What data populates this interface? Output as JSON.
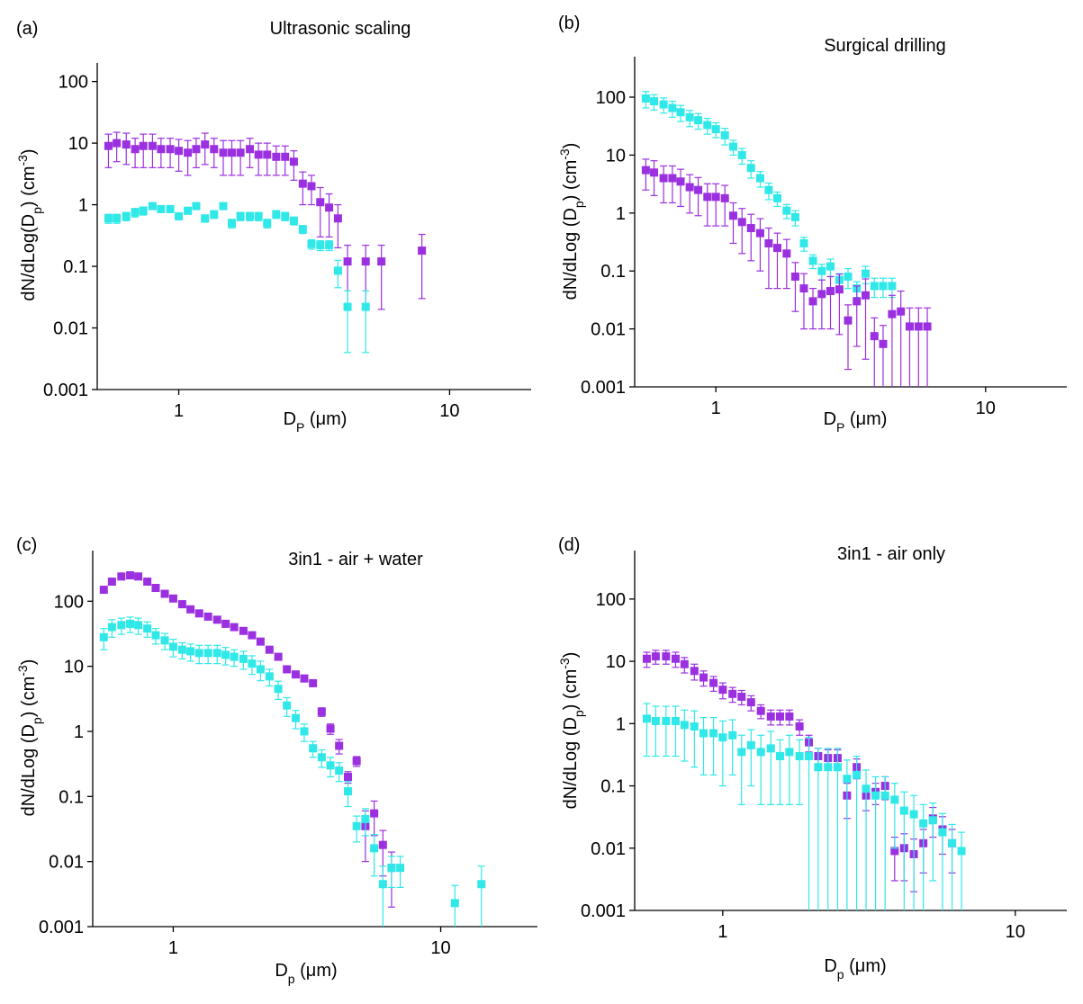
{
  "chart_data": [
    {
      "type": "scatter",
      "panel": "(a)",
      "title": "Ultrasonic scaling",
      "xlabel": [
        "D",
        "P",
        " (μm)"
      ],
      "ylabel": [
        "dN/dLog(D",
        "p",
        ")  (cm",
        "-3",
        ")"
      ],
      "xscale": "log",
      "yscale": "log",
      "xlim": [
        0.5,
        20
      ],
      "ylim": [
        0.001,
        200
      ],
      "xticks": [
        1,
        10
      ],
      "yticks": [
        0.001,
        0.01,
        0.1,
        1,
        10,
        100
      ],
      "series": [
        {
          "color": "#9b30e0",
          "x": [
            0.55,
            0.59,
            0.64,
            0.69,
            0.74,
            0.8,
            0.86,
            0.93,
            1.0,
            1.08,
            1.16,
            1.25,
            1.35,
            1.46,
            1.57,
            1.69,
            1.83,
            1.97,
            2.12,
            2.29,
            2.47,
            2.66,
            2.87,
            3.09,
            3.33,
            3.59,
            3.87,
            4.2,
            4.9,
            5.6,
            7.9
          ],
          "values": [
            9,
            10,
            9.5,
            8,
            9,
            9,
            8,
            8,
            7.5,
            7,
            8,
            9.5,
            8,
            7,
            7,
            7,
            8,
            6.5,
            6.5,
            6,
            6,
            5,
            2.2,
            2,
            1.1,
            0.9,
            0.6,
            0.12,
            0.12,
            0.12,
            0.18
          ],
          "errors": [
            5,
            5,
            5,
            4,
            5,
            5,
            4,
            4,
            4,
            4,
            4,
            5,
            4,
            4,
            4,
            4,
            4,
            3.5,
            3.5,
            3,
            3,
            2.5,
            1.2,
            1,
            0.8,
            0.6,
            0.4,
            0.1,
            0.1,
            0.1,
            0.15
          ]
        },
        {
          "color": "#30e8e8",
          "x": [
            0.55,
            0.59,
            0.64,
            0.69,
            0.74,
            0.8,
            0.86,
            0.93,
            1.0,
            1.08,
            1.16,
            1.25,
            1.35,
            1.46,
            1.57,
            1.69,
            1.83,
            1.97,
            2.12,
            2.29,
            2.47,
            2.66,
            2.87,
            3.09,
            3.33,
            3.59,
            3.87,
            4.2,
            4.9
          ],
          "values": [
            0.6,
            0.6,
            0.65,
            0.75,
            0.8,
            0.95,
            0.85,
            0.85,
            0.65,
            0.8,
            0.95,
            0.6,
            0.7,
            0.95,
            0.5,
            0.65,
            0.65,
            0.65,
            0.5,
            0.7,
            0.65,
            0.55,
            0.4,
            0.23,
            0.22,
            0.22,
            0.085,
            0.022,
            0.022
          ],
          "errors": [
            0.1,
            0.1,
            0.1,
            0.12,
            0.12,
            0.1,
            0.1,
            0.1,
            0.08,
            0.1,
            0.1,
            0.08,
            0.1,
            0.1,
            0.08,
            0.1,
            0.1,
            0.1,
            0.08,
            0.1,
            0.1,
            0.08,
            0.06,
            0.04,
            0.04,
            0.04,
            0.04,
            0.018,
            0.018
          ]
        }
      ]
    },
    {
      "type": "scatter",
      "panel": "(b)",
      "title": "Surgical drilling",
      "xlabel": [
        "D",
        "P",
        " (μm)"
      ],
      "ylabel": [
        "dN/dLog (D",
        "p",
        ") (cm",
        "-3",
        ")"
      ],
      "xscale": "log",
      "yscale": "log",
      "xlim": [
        0.5,
        20
      ],
      "ylim": [
        0.001,
        500
      ],
      "xticks": [
        1,
        10
      ],
      "yticks": [
        0.001,
        0.01,
        0.1,
        1,
        10,
        100
      ],
      "series": [
        {
          "color": "#30e8e8",
          "x": [
            0.55,
            0.59,
            0.64,
            0.69,
            0.74,
            0.8,
            0.86,
            0.93,
            1.0,
            1.08,
            1.16,
            1.25,
            1.35,
            1.46,
            1.57,
            1.69,
            1.83,
            1.97,
            2.12,
            2.29,
            2.47,
            2.66,
            2.87,
            3.09,
            3.33,
            3.59,
            3.87,
            4.17,
            4.5
          ],
          "values": [
            95,
            85,
            75,
            65,
            55,
            45,
            40,
            33,
            28,
            22,
            14,
            10,
            6,
            4,
            2.5,
            1.8,
            1.1,
            0.85,
            0.3,
            0.15,
            0.1,
            0.12,
            0.07,
            0.08,
            0.05,
            0.09,
            0.055,
            0.055,
            0.055
          ],
          "errors": [
            30,
            25,
            22,
            20,
            17,
            14,
            12,
            10,
            8,
            7,
            4,
            3,
            2,
            1.2,
            0.8,
            0.5,
            0.3,
            0.25,
            0.08,
            0.04,
            0.03,
            0.04,
            0.02,
            0.03,
            0.015,
            0.03,
            0.02,
            0.02,
            0.02
          ]
        },
        {
          "color": "#9b30e0",
          "x": [
            0.55,
            0.59,
            0.64,
            0.69,
            0.74,
            0.8,
            0.86,
            0.93,
            1.0,
            1.08,
            1.16,
            1.25,
            1.35,
            1.46,
            1.57,
            1.69,
            1.83,
            1.97,
            2.12,
            2.29,
            2.47,
            2.66,
            2.87,
            3.09,
            3.33,
            3.59,
            3.87,
            4.17,
            4.5,
            4.85,
            5.23,
            5.64,
            6.08
          ],
          "values": [
            5.5,
            5,
            4,
            4,
            3.5,
            2.8,
            2.5,
            1.9,
            1.9,
            1.8,
            0.9,
            0.7,
            0.55,
            0.45,
            0.3,
            0.25,
            0.2,
            0.08,
            0.05,
            0.03,
            0.04,
            0.045,
            0.048,
            0.014,
            0.03,
            0.038,
            0.0075,
            0.0055,
            0.018,
            0.02,
            0.011,
            0.011,
            0.011
          ],
          "errors": [
            3,
            3,
            2.5,
            2.5,
            2.2,
            1.8,
            1.6,
            1.3,
            1.3,
            1.2,
            0.6,
            0.5,
            0.4,
            0.35,
            0.25,
            0.2,
            0.15,
            0.06,
            0.04,
            0.02,
            0.03,
            0.035,
            0.04,
            0.012,
            0.025,
            0.035,
            0.008,
            0.006,
            0.02,
            0.025,
            0.012,
            0.012,
            0.012
          ]
        }
      ]
    },
    {
      "type": "scatter",
      "panel": "(c)",
      "title": "3in1 - air + water",
      "xlabel": [
        "D",
        "p",
        " (μm)"
      ],
      "ylabel": [
        "dN/dLog (D",
        "p",
        ") (cm",
        "-3",
        ")"
      ],
      "xscale": "log",
      "yscale": "log",
      "xlim": [
        0.5,
        23
      ],
      "ylim": [
        0.001,
        600
      ],
      "xticks": [
        1,
        10
      ],
      "yticks": [
        0.001,
        0.01,
        0.1,
        1,
        10,
        100
      ],
      "series": [
        {
          "color": "#9b30e0",
          "x": [
            0.55,
            0.59,
            0.64,
            0.69,
            0.74,
            0.8,
            0.86,
            0.93,
            1.0,
            1.08,
            1.16,
            1.25,
            1.35,
            1.46,
            1.57,
            1.69,
            1.83,
            1.97,
            2.12,
            2.29,
            2.47,
            2.66,
            2.87,
            3.09,
            3.33,
            3.59,
            3.87,
            4.17,
            4.5,
            4.85,
            5.23,
            5.64,
            6.08,
            6.55
          ],
          "values": [
            150,
            200,
            240,
            250,
            240,
            200,
            160,
            130,
            110,
            90,
            75,
            65,
            58,
            52,
            45,
            40,
            35,
            30,
            24,
            18,
            14,
            9,
            7.5,
            6.5,
            5.5,
            2,
            1.1,
            0.6,
            0.2,
            0.35,
            0.035,
            0.055,
            0.018,
            0.008
          ],
          "errors": [
            15,
            20,
            25,
            25,
            25,
            20,
            16,
            13,
            11,
            9,
            7,
            6,
            5,
            5,
            4,
            4,
            3,
            3,
            2.5,
            2,
            1.5,
            1,
            0.8,
            0.7,
            0.6,
            0.3,
            0.2,
            0.15,
            0.04,
            0.06,
            0.025,
            0.03,
            0.012,
            0.006
          ]
        },
        {
          "color": "#30e8e8",
          "x": [
            0.55,
            0.59,
            0.64,
            0.69,
            0.74,
            0.8,
            0.86,
            0.93,
            1.0,
            1.08,
            1.16,
            1.25,
            1.35,
            1.46,
            1.57,
            1.69,
            1.83,
            1.97,
            2.12,
            2.29,
            2.47,
            2.66,
            2.87,
            3.09,
            3.33,
            3.59,
            3.87,
            4.17,
            4.5,
            4.85,
            5.23,
            5.64,
            6.08,
            6.55,
            7.06,
            11.3,
            14.2
          ],
          "values": [
            28,
            40,
            43,
            45,
            43,
            38,
            30,
            25,
            20,
            18,
            17,
            16,
            16,
            16,
            15,
            14,
            13,
            11,
            9,
            7,
            4.5,
            2.5,
            1.6,
            1,
            0.55,
            0.4,
            0.3,
            0.25,
            0.12,
            0.035,
            0.045,
            0.016,
            0.0045,
            0.008,
            0.008,
            0.0023,
            0.0045
          ],
          "errors": [
            10,
            12,
            12,
            12,
            12,
            10,
            8,
            7,
            6,
            5,
            5,
            5,
            5,
            5,
            4.5,
            4,
            4,
            3.5,
            3,
            2,
            1.4,
            0.8,
            0.5,
            0.3,
            0.15,
            0.12,
            0.1,
            0.08,
            0.05,
            0.015,
            0.02,
            0.01,
            0.004,
            0.004,
            0.004,
            0.002,
            0.004
          ]
        }
      ]
    },
    {
      "type": "scatter",
      "panel": "(d)",
      "title": "3in1 - air only",
      "xlabel": [
        "D",
        "p",
        " (μm)"
      ],
      "ylabel": [
        "dN/dLog (D",
        "p",
        ") (cm",
        "-3",
        ")"
      ],
      "xscale": "log",
      "yscale": "log",
      "xlim": [
        0.5,
        15
      ],
      "ylim": [
        0.001,
        600
      ],
      "xticks": [
        1,
        10
      ],
      "yticks": [
        0.001,
        0.01,
        0.1,
        1,
        10,
        100
      ],
      "series": [
        {
          "color": "#9b30e0",
          "x": [
            0.55,
            0.59,
            0.64,
            0.69,
            0.74,
            0.8,
            0.86,
            0.93,
            1.0,
            1.08,
            1.16,
            1.25,
            1.35,
            1.46,
            1.57,
            1.69,
            1.83,
            1.97,
            2.12,
            2.29,
            2.47,
            2.66,
            2.87,
            3.09,
            3.33,
            3.59,
            3.87,
            4.17,
            4.5,
            4.85,
            5.23,
            5.64,
            6.08
          ],
          "values": [
            11,
            12,
            12,
            11,
            9,
            7,
            5.5,
            4.5,
            3.5,
            3,
            2.7,
            2.2,
            1.6,
            1.3,
            1.3,
            1.3,
            0.9,
            0.5,
            0.3,
            0.28,
            0.28,
            0.07,
            0.2,
            0.07,
            0.08,
            0.1,
            0.009,
            0.01,
            0.008,
            0.012,
            0.03,
            0.02,
            0.012
          ],
          "errors": [
            3,
            3,
            3,
            3,
            2.5,
            2,
            1.5,
            1.2,
            1,
            0.8,
            0.7,
            0.6,
            0.4,
            0.35,
            0.35,
            0.35,
            0.25,
            0.15,
            0.1,
            0.1,
            0.1,
            0.04,
            0.07,
            0.03,
            0.03,
            0.04,
            0.006,
            0.007,
            0.006,
            0.008,
            0.015,
            0.012,
            0.008
          ]
        },
        {
          "color": "#30e8e8",
          "x": [
            0.55,
            0.59,
            0.64,
            0.69,
            0.74,
            0.8,
            0.86,
            0.93,
            1.0,
            1.08,
            1.16,
            1.25,
            1.35,
            1.46,
            1.57,
            1.69,
            1.83,
            1.97,
            2.12,
            2.29,
            2.47,
            2.66,
            2.87,
            3.09,
            3.33,
            3.59,
            3.87,
            4.17,
            4.5,
            4.85,
            5.23,
            5.64,
            6.08,
            6.55
          ],
          "values": [
            1.2,
            1.1,
            1.1,
            1.1,
            0.95,
            0.9,
            0.7,
            0.7,
            0.6,
            0.65,
            0.35,
            0.45,
            0.35,
            0.4,
            0.3,
            0.35,
            0.3,
            0.3,
            0.2,
            0.2,
            0.2,
            0.13,
            0.15,
            0.09,
            0.07,
            0.07,
            0.06,
            0.04,
            0.035,
            0.025,
            0.028,
            0.018,
            0.012,
            0.009
          ],
          "errors": [
            0.9,
            0.8,
            0.8,
            0.8,
            0.7,
            0.7,
            0.55,
            0.55,
            0.5,
            0.5,
            0.3,
            0.35,
            0.3,
            0.35,
            0.25,
            0.3,
            0.25,
            0.3,
            0.2,
            0.2,
            0.2,
            0.13,
            0.15,
            0.09,
            0.07,
            0.07,
            0.05,
            0.04,
            0.035,
            0.025,
            0.025,
            0.018,
            0.012,
            0.009
          ]
        }
      ]
    }
  ]
}
